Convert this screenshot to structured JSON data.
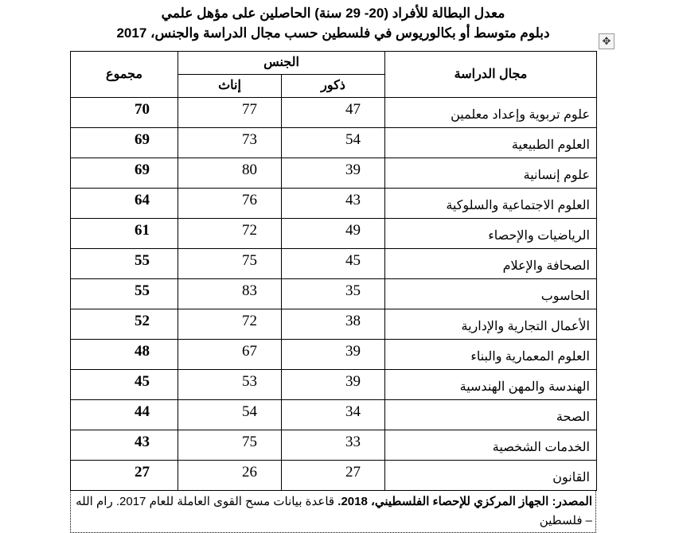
{
  "title": {
    "line1": "معدل البطالة للأفراد (20- 29 سنة) الحاصلين على مؤهل علمي",
    "line2": "دبلوم متوسط أو بكالوريوس في فلسطين حسب مجال الدراسة والجنس، 2017"
  },
  "table": {
    "headers": {
      "field": "مجال الدراسة",
      "sex": "الجنس",
      "males": "ذكور",
      "females": "إناث",
      "total": "مجموع"
    },
    "rows": [
      {
        "field": "علوم تربوية وإعداد معلمين",
        "males": "47",
        "females": "77",
        "total": "70"
      },
      {
        "field": "العلوم الطبيعية",
        "males": "54",
        "females": "73",
        "total": "69"
      },
      {
        "field": "علوم إنسانية",
        "males": "39",
        "females": "80",
        "total": "69"
      },
      {
        "field": "العلوم الاجتماعية والسلوكية",
        "males": "43",
        "females": "76",
        "total": "64"
      },
      {
        "field": "الرياضيات والإحصاء",
        "males": "49",
        "females": "72",
        "total": "61"
      },
      {
        "field": "الصحافة والإعلام",
        "males": "45",
        "females": "75",
        "total": "55"
      },
      {
        "field": "الحاسوب",
        "males": "35",
        "females": "83",
        "total": "55"
      },
      {
        "field": "الأعمال التجارية والإدارية",
        "males": "38",
        "females": "72",
        "total": "52"
      },
      {
        "field": "العلوم المعمارية والبناء",
        "males": "39",
        "females": "67",
        "total": "48"
      },
      {
        "field": "الهندسة والمهن الهندسية",
        "males": "39",
        "females": "53",
        "total": "45"
      },
      {
        "field": "الصحة",
        "males": "34",
        "females": "54",
        "total": "44"
      },
      {
        "field": "الخدمات الشخصية",
        "males": "33",
        "females": "75",
        "total": "43"
      },
      {
        "field": "القانون",
        "males": "27",
        "females": "26",
        "total": "27"
      }
    ]
  },
  "source": {
    "bold": "المصدر: الجهاز المركزي للإحصاء الفلسطيني، 2018.",
    "rest": " قاعدة بيانات مسح القوى العاملة للعام 2017. رام الله – فلسطين"
  }
}
